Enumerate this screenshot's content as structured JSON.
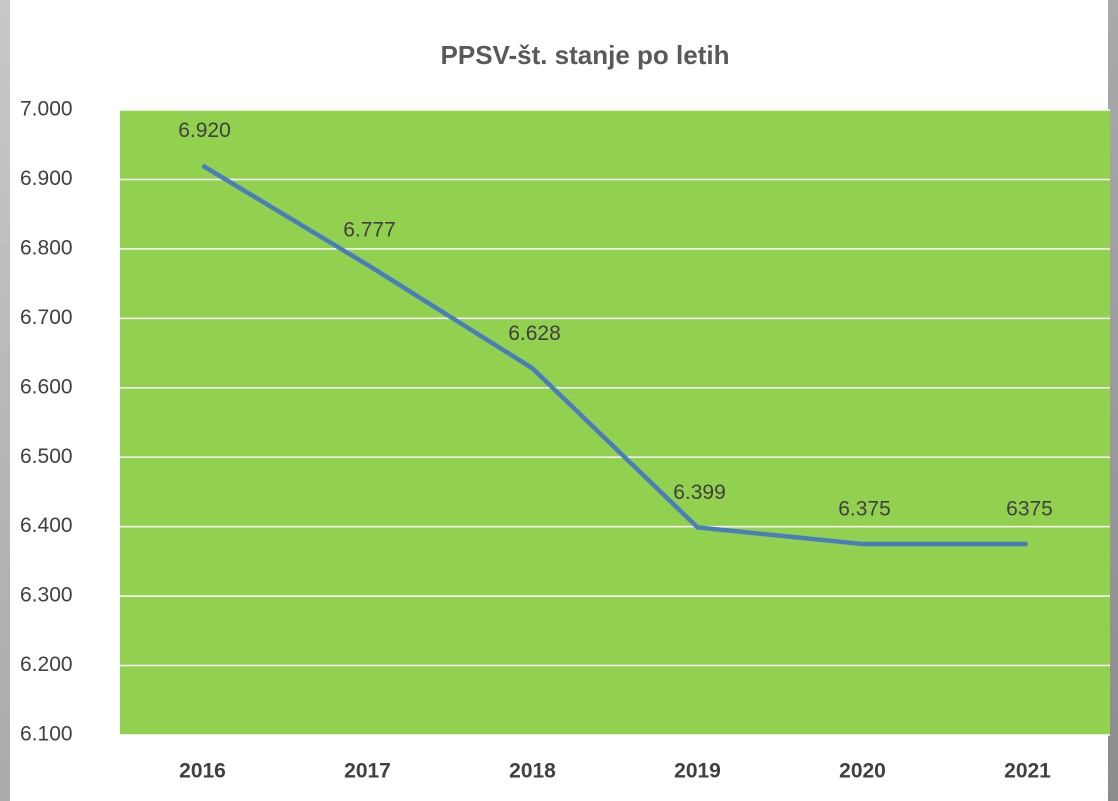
{
  "chart_data": {
    "type": "line",
    "title": "PPSV-št. stanje po letih",
    "categories": [
      "2016",
      "2017",
      "2018",
      "2019",
      "2020",
      "2021"
    ],
    "series": [
      {
        "color": "#4a7ebb",
        "values": [
          6920,
          6777,
          6628,
          6399,
          6375,
          6375
        ],
        "value_labels": [
          "6.920",
          "6.777",
          "6.628",
          "6.399",
          "6.375",
          "6375"
        ]
      }
    ],
    "ylim": [
      6100,
      7000
    ],
    "yticks": [
      {
        "value": 6100,
        "label": "6.100"
      },
      {
        "value": 6200,
        "label": "6.200"
      },
      {
        "value": 6300,
        "label": "6.300"
      },
      {
        "value": 6400,
        "label": "6.400"
      },
      {
        "value": 6500,
        "label": "6.500"
      },
      {
        "value": 6600,
        "label": "6.600"
      },
      {
        "value": 6700,
        "label": "6.700"
      },
      {
        "value": 6800,
        "label": "6.800"
      },
      {
        "value": 6900,
        "label": "6.900"
      },
      {
        "value": 7000,
        "label": "7.000"
      }
    ],
    "grid": true,
    "plot_background": "#92d050"
  }
}
